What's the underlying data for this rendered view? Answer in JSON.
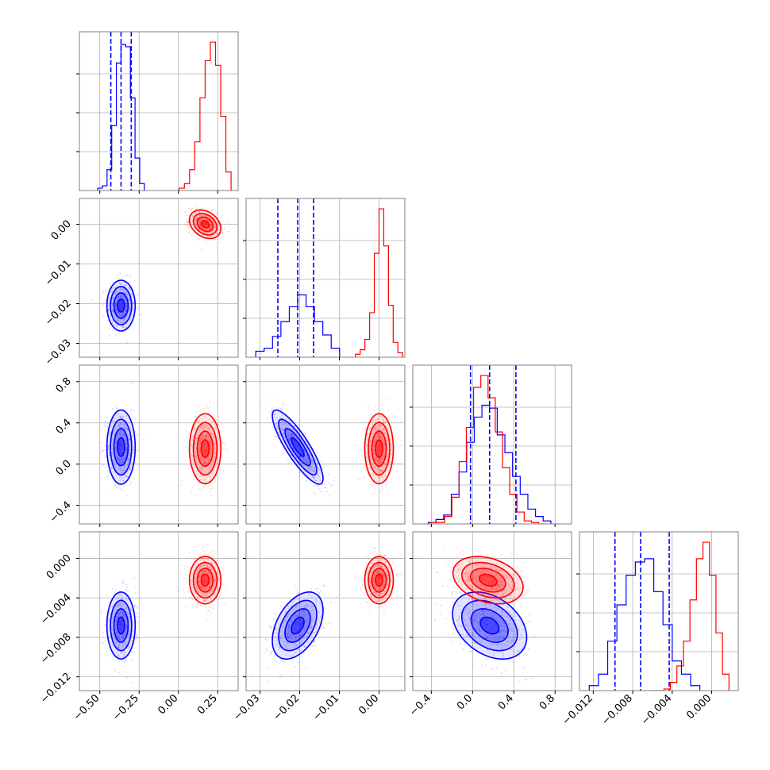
{
  "colors": {
    "series_a": "#0000ff",
    "series_b": "#ff0000",
    "grid": "#b0b0b0",
    "frame": "#808080"
  },
  "chart_data": {
    "type": "corner",
    "grid": true,
    "parameters": [
      {
        "ticks": [
          "−0.50",
          "−0.25",
          "0.00",
          "0.25"
        ],
        "tick_values": [
          -0.5,
          -0.25,
          0.0,
          0.25
        ],
        "range": [
          -0.63,
          0.38
        ]
      },
      {
        "ticks": [
          "−0.03",
          "−0.02",
          "−0.01",
          "0.00"
        ],
        "tick_values": [
          -0.03,
          -0.02,
          -0.01,
          0.0
        ],
        "range": [
          -0.0335,
          0.0065
        ]
      },
      {
        "ticks": [
          "−0.4",
          "0.0",
          "0.4",
          "0.8"
        ],
        "tick_values": [
          -0.4,
          0.0,
          0.4,
          0.8
        ],
        "range": [
          -0.58,
          0.96
        ]
      },
      {
        "ticks": [
          "−0.012",
          "0.000",
          "−0.004",
          "−0.008"
        ],
        "tick_values": [
          -0.012,
          0.0,
          -0.004,
          -0.008
        ],
        "range": [
          -0.0134,
          0.0027
        ]
      }
    ],
    "series": [
      {
        "color": "blue",
        "means": [
          -0.365,
          -0.0205,
          0.165,
          -0.0068
        ],
        "sds": [
          0.045,
          0.0032,
          0.18,
          0.0017
        ],
        "quantiles": [
          [
            -0.43,
            -0.365,
            -0.3
          ],
          [
            -0.0255,
            -0.0205,
            -0.0165
          ],
          [
            -0.02,
            0.165,
            0.42
          ],
          [
            -0.0098,
            -0.0072,
            -0.0043
          ]
        ],
        "correlations": [
          [
            1,
            0,
            0,
            0
          ],
          [
            0,
            1,
            -0.85,
            0.45
          ],
          [
            0,
            -0.85,
            1,
            -0.35
          ],
          [
            0,
            0.45,
            -0.35,
            1
          ]
        ]
      },
      {
        "color": "red",
        "means": [
          0.17,
          0.0,
          0.15,
          -0.0022
        ],
        "sds": [
          0.05,
          0.0018,
          0.17,
          0.0012
        ],
        "quantiles": [],
        "correlations": [
          [
            1,
            -0.3,
            0,
            0
          ],
          [
            -0.3,
            1,
            0,
            0
          ],
          [
            0,
            0,
            1,
            -0.3
          ],
          [
            0,
            0,
            -0.3,
            1
          ]
        ]
      }
    ],
    "histograms": [
      {
        "blue": [
          1,
          2,
          9,
          28,
          55,
          63,
          62,
          40,
          14,
          3
        ],
        "red": [
          1,
          3,
          9,
          21,
          40,
          56,
          64,
          54,
          32,
          8
        ]
      },
      {
        "blue": [
          0.04,
          0.06,
          0.14,
          0.24,
          0.34,
          0.42,
          0.34,
          0.24,
          0.15,
          0.06
        ],
        "red": [
          0.02,
          0.05,
          0.12,
          0.3,
          0.7,
          1.0,
          0.75,
          0.35,
          0.1,
          0.03
        ]
      },
      {
        "blue": [
          0.01,
          0.03,
          0.06,
          0.2,
          0.35,
          0.55,
          0.72,
          0.8,
          0.78,
          0.6,
          0.48,
          0.32,
          0.2,
          0.1,
          0.05,
          0.02
        ],
        "red": [
          0.01,
          0.01,
          0.05,
          0.18,
          0.42,
          0.65,
          0.92,
          1.0,
          0.85,
          0.62,
          0.38,
          0.2,
          0.08,
          0.02,
          0.01,
          0.0
        ]
      },
      {
        "blue": [
          0.03,
          0.1,
          0.3,
          0.52,
          0.7,
          0.78,
          0.8,
          0.6,
          0.4,
          0.18,
          0.1,
          0.03
        ],
        "red": [
          0.0,
          0.0,
          0.01,
          0.05,
          0.15,
          0.3,
          0.55,
          0.8,
          0.9,
          0.7,
          0.35,
          0.1
        ]
      }
    ]
  }
}
